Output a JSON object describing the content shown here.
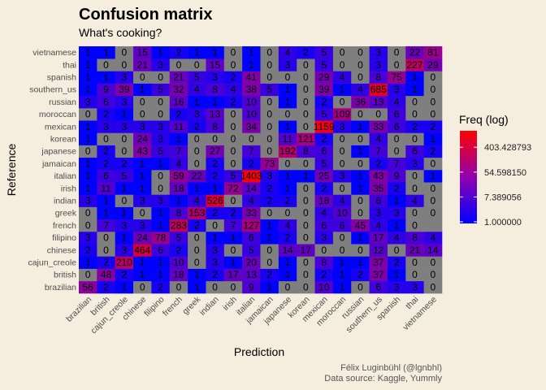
{
  "chart_data": {
    "type": "heatmap",
    "title": "Confusion matrix",
    "subtitle": "What's cooking?",
    "xlabel": "Prediction",
    "ylabel": "Reference",
    "caption_lines": [
      "Félix Luginbühl (@lgnbhl)",
      "Data source: Kaggle, Yummly"
    ],
    "categories": [
      "brazilian",
      "british",
      "cajun_creole",
      "chinese",
      "filipino",
      "french",
      "greek",
      "indian",
      "irish",
      "italian",
      "jamaican",
      "japanese",
      "korean",
      "mexican",
      "moroccan",
      "russian",
      "southern_us",
      "spanish",
      "thai",
      "vietnamese"
    ],
    "legend": {
      "title": "Freq (log)",
      "labels": [
        "403.428793",
        "54.598150",
        "7.389056",
        "1.000000"
      ],
      "values": [
        403.428793,
        54.59815,
        7.389056,
        1.0
      ],
      "range": [
        1,
        1600
      ]
    },
    "colors": {
      "low": "#0000FF",
      "high": "#FF0000",
      "missing": "#7F7F7F",
      "background": "#F5EEDF"
    },
    "matrix": [
      [
        56,
        2,
        1,
        0,
        2,
        0,
        1,
        0,
        0,
        9,
        1,
        0,
        0,
        10,
        1,
        0,
        6,
        3,
        3,
        0
      ],
      [
        0,
        48,
        2,
        1,
        1,
        18,
        1,
        2,
        17,
        13,
        2,
        1,
        0,
        2,
        1,
        2,
        37,
        1,
        0,
        0
      ],
      [
        1,
        2,
        210,
        1,
        1,
        10,
        0,
        3,
        1,
        20,
        0,
        1,
        0,
        8,
        1,
        1,
        37,
        2,
        0,
        0
      ],
      [
        2,
        0,
        3,
        464,
        6,
        2,
        0,
        3,
        0,
        5,
        0,
        14,
        17,
        0,
        0,
        0,
        12,
        0,
        21,
        14
      ],
      [
        3,
        0,
        1,
        24,
        78,
        5,
        0,
        1,
        1,
        6,
        1,
        2,
        0,
        3,
        0,
        1,
        17,
        4,
        8,
        4
      ],
      [
        0,
        7,
        3,
        3,
        1,
        283,
        2,
        0,
        7,
        127,
        1,
        4,
        0,
        6,
        6,
        45,
        4,
        1,
        0,
        null
      ],
      [
        0,
        1,
        1,
        0,
        1,
        8,
        153,
        2,
        2,
        33,
        0,
        0,
        0,
        4,
        10,
        0,
        3,
        3,
        0,
        0
      ],
      [
        3,
        1,
        0,
        3,
        3,
        1,
        4,
        526,
        0,
        4,
        2,
        2,
        0,
        18,
        4,
        0,
        6,
        1,
        4,
        0
      ],
      [
        1,
        11,
        1,
        1,
        0,
        18,
        1,
        1,
        72,
        14,
        2,
        1,
        0,
        2,
        0,
        1,
        35,
        2,
        0,
        0
      ],
      [
        1,
        6,
        5,
        1,
        0,
        59,
        22,
        2,
        5,
        1403,
        3,
        1,
        1,
        25,
        3,
        1,
        43,
        9,
        0,
        1
      ],
      [
        1,
        2,
        2,
        1,
        1,
        4,
        0,
        2,
        0,
        2,
        73,
        0,
        0,
        5,
        0,
        0,
        2,
        7,
        3,
        0
      ],
      [
        0,
        2,
        0,
        43,
        5,
        7,
        0,
        27,
        0,
        7,
        0,
        192,
        8,
        6,
        0,
        1,
        7,
        0,
        6,
        2
      ],
      [
        1,
        0,
        0,
        24,
        3,
        1,
        0,
        0,
        0,
        0,
        0,
        11,
        121,
        2,
        0,
        0,
        4,
        0,
        0,
        1
      ],
      [
        1,
        3,
        3,
        3,
        3,
        11,
        2,
        8,
        0,
        34,
        0,
        1,
        0,
        1159,
        3,
        1,
        33,
        6,
        2,
        2
      ],
      [
        0,
        2,
        1,
        0,
        0,
        2,
        3,
        13,
        0,
        10,
        0,
        0,
        0,
        5,
        109,
        0,
        0,
        6,
        0,
        0
      ],
      [
        3,
        6,
        3,
        0,
        0,
        16,
        1,
        1,
        2,
        10,
        0,
        1,
        0,
        2,
        0,
        36,
        13,
        4,
        0,
        0
      ],
      [
        1,
        9,
        39,
        1,
        5,
        32,
        4,
        8,
        4,
        38,
        5,
        1,
        0,
        39,
        1,
        4,
        685,
        3,
        1,
        0
      ],
      [
        1,
        1,
        3,
        0,
        0,
        21,
        5,
        3,
        2,
        41,
        0,
        0,
        0,
        29,
        4,
        0,
        8,
        75,
        1,
        0
      ],
      [
        1,
        0,
        0,
        21,
        3,
        0,
        0,
        15,
        0,
        1,
        0,
        3,
        0,
        5,
        0,
        0,
        3,
        0,
        227,
        29
      ],
      [
        1,
        1,
        0,
        15,
        1,
        2,
        1,
        1,
        0,
        1,
        0,
        4,
        2,
        5,
        0,
        0,
        3,
        0,
        22,
        81
      ]
    ]
  }
}
